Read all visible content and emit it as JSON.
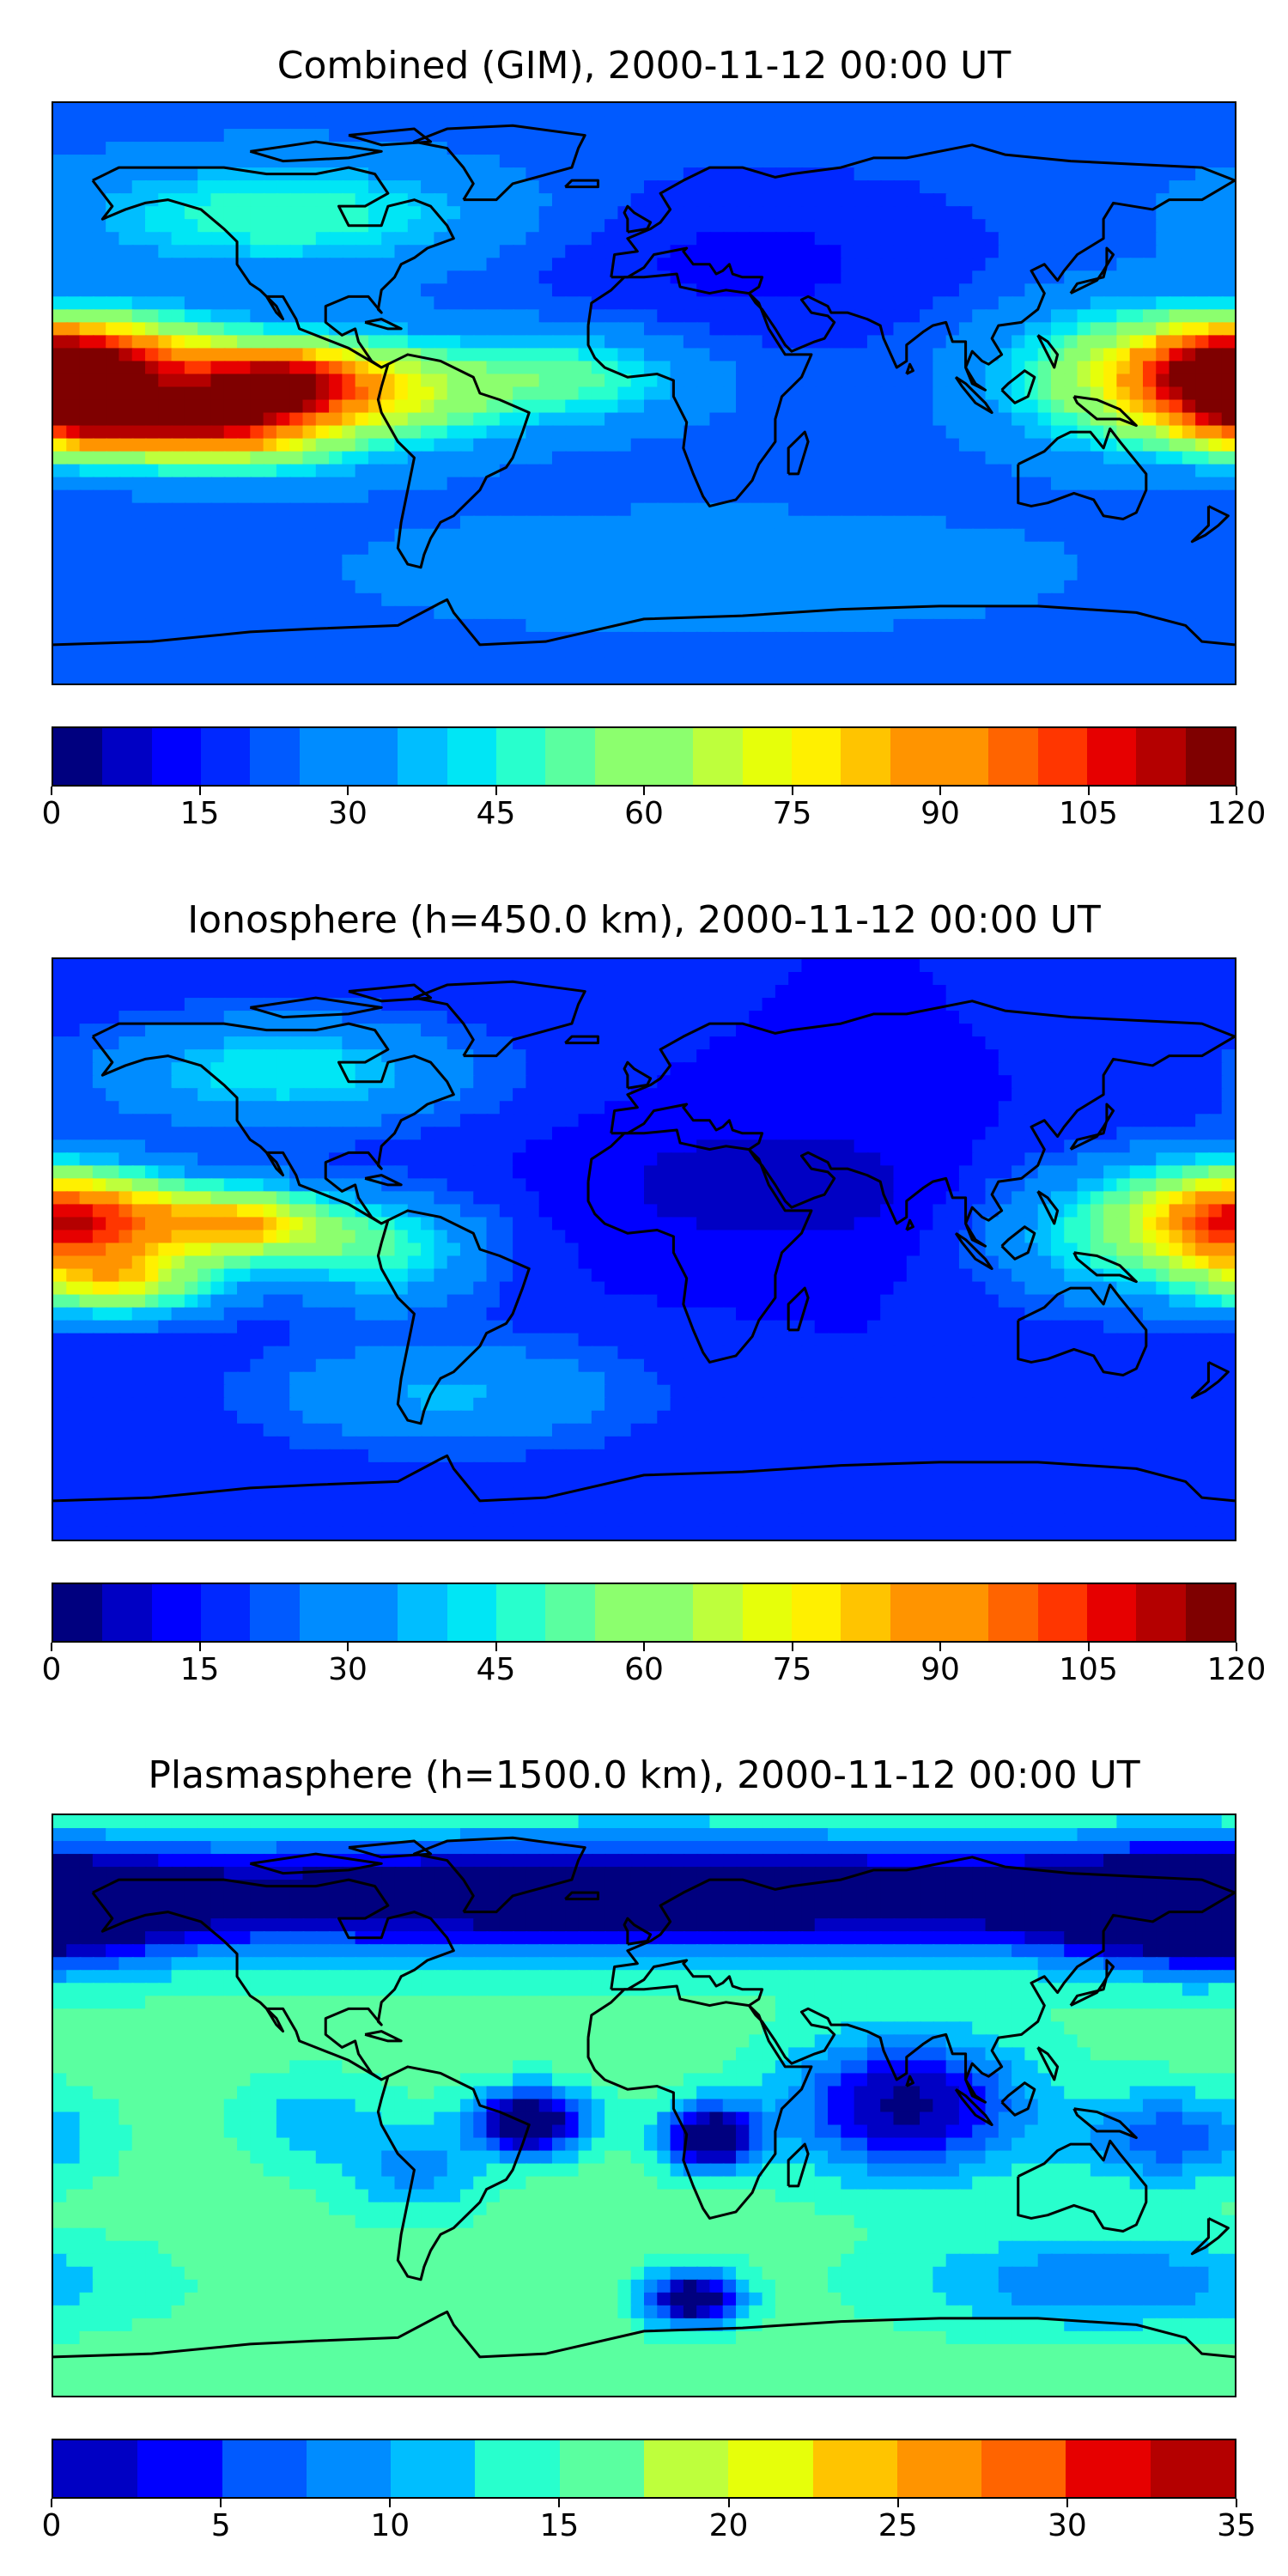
{
  "panels": [
    {
      "title": "Combined (GIM), 2000-11-12 00:00 UT",
      "colorbar": {
        "ticks": [
          "0",
          "15",
          "30",
          "45",
          "60",
          "75",
          "90",
          "105",
          "120"
        ],
        "levels": 24,
        "range": [
          0,
          120
        ]
      },
      "field": {
        "background_value": 22,
        "blobs": [
          {
            "lon": -160,
            "lat": 10,
            "value": 100,
            "sx": 25,
            "sy": 10
          },
          {
            "lon": -110,
            "lat": 5,
            "value": 95,
            "sx": 20,
            "sy": 8
          },
          {
            "lon": -160,
            "lat": -10,
            "value": 100,
            "sx": 25,
            "sy": 8
          },
          {
            "lon": -120,
            "lat": -10,
            "value": 85,
            "sx": 22,
            "sy": 10
          },
          {
            "lon": -75,
            "lat": 0,
            "value": 70,
            "sx": 25,
            "sy": 12
          },
          {
            "lon": -20,
            "lat": 5,
            "value": 55,
            "sx": 25,
            "sy": 10
          },
          {
            "lon": 175,
            "lat": 5,
            "value": 95,
            "sx": 20,
            "sy": 12
          },
          {
            "lon": 140,
            "lat": 5,
            "value": 65,
            "sx": 25,
            "sy": 15
          },
          {
            "lon": -110,
            "lat": 55,
            "value": 55,
            "sx": 45,
            "sy": 12
          },
          {
            "lon": 20,
            "lat": -55,
            "value": 35,
            "sx": 70,
            "sy": 12
          },
          {
            "lon": 30,
            "lat": 40,
            "value": 12,
            "sx": 50,
            "sy": 18
          }
        ]
      }
    },
    {
      "title": "Ionosphere  (h=450.0 km), 2000-11-12 00:00 UT",
      "colorbar": {
        "ticks": [
          "0",
          "15",
          "30",
          "45",
          "60",
          "75",
          "90",
          "105",
          "120"
        ],
        "levels": 24,
        "range": [
          0,
          120
        ]
      },
      "field": {
        "background_value": 15,
        "blobs": [
          {
            "lon": -160,
            "lat": 10,
            "value": 80,
            "sx": 22,
            "sy": 10
          },
          {
            "lon": -120,
            "lat": 8,
            "value": 80,
            "sx": 18,
            "sy": 8
          },
          {
            "lon": -160,
            "lat": -10,
            "value": 75,
            "sx": 22,
            "sy": 8
          },
          {
            "lon": -80,
            "lat": 0,
            "value": 55,
            "sx": 22,
            "sy": 12
          },
          {
            "lon": 175,
            "lat": 10,
            "value": 75,
            "sx": 20,
            "sy": 12
          },
          {
            "lon": 140,
            "lat": 5,
            "value": 50,
            "sx": 25,
            "sy": 15
          },
          {
            "lon": -110,
            "lat": 55,
            "value": 50,
            "sx": 40,
            "sy": 12
          },
          {
            "lon": 40,
            "lat": 20,
            "value": 5,
            "sx": 40,
            "sy": 15
          },
          {
            "lon": -60,
            "lat": -45,
            "value": 40,
            "sx": 40,
            "sy": 12
          }
        ]
      }
    },
    {
      "title": "Plasmasphere (h=1500.0 km), 2000-11-12 00:00 UT",
      "colorbar": {
        "ticks": [
          "0",
          "5",
          "10",
          "15",
          "20",
          "25",
          "30",
          "35"
        ],
        "levels": 14,
        "range": [
          0,
          35
        ]
      },
      "field": {
        "background_value": 16,
        "blobs": [
          {
            "lon": 0,
            "lat": 65,
            "value": -10,
            "sx": 180,
            "sy": 12
          },
          {
            "lon": 170,
            "lat": 60,
            "value": -8,
            "sx": 30,
            "sy": 12
          },
          {
            "lon": -100,
            "lat": -5,
            "value": 10,
            "sx": 15,
            "sy": 10
          },
          {
            "lon": -70,
            "lat": -20,
            "value": 8,
            "sx": 15,
            "sy": 10
          },
          {
            "lon": -35,
            "lat": -5,
            "value": -10,
            "sx": 12,
            "sy": 7
          },
          {
            "lon": 20,
            "lat": -10,
            "value": -10,
            "sx": 10,
            "sy": 7
          },
          {
            "lon": 80,
            "lat": 0,
            "value": -4,
            "sx": 25,
            "sy": 15
          },
          {
            "lon": 15,
            "lat": -60,
            "value": -8,
            "sx": 10,
            "sy": 6
          },
          {
            "lon": 160,
            "lat": -10,
            "value": 4,
            "sx": 20,
            "sy": 10
          },
          {
            "lon": 140,
            "lat": -55,
            "value": 6,
            "sx": 40,
            "sy": 10
          }
        ]
      }
    }
  ],
  "colormap": [
    "#00007f",
    "#0000c4",
    "#0000ff",
    "#0028ff",
    "#005aff",
    "#008cff",
    "#00beff",
    "#00e6f5",
    "#28ffcd",
    "#5affa0",
    "#8cff6e",
    "#beff3c",
    "#e6ff0a",
    "#fff000",
    "#ffc400",
    "#ff9400",
    "#ff6400",
    "#ff3600",
    "#e60000",
    "#b40000",
    "#7f0000"
  ]
}
